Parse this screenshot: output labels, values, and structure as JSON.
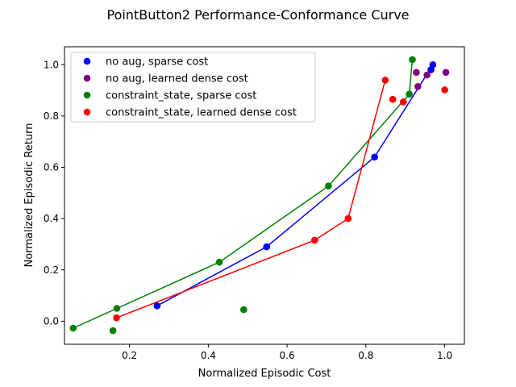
{
  "chart_data": {
    "type": "scatter",
    "title": "PointButton2 Performance-Conformance Curve",
    "xlabel": "Normalized Episodic Cost",
    "ylabel": "Normalized Episodic Return",
    "xlim": [
      0.035,
      1.05
    ],
    "ylim": [
      -0.09,
      1.07
    ],
    "xticks": [
      0.2,
      0.4,
      0.6,
      0.8,
      1.0
    ],
    "yticks": [
      0.0,
      0.2,
      0.4,
      0.6,
      0.8,
      1.0
    ],
    "xtick_labels": [
      "0.2",
      "0.4",
      "0.6",
      "0.8",
      "1.0"
    ],
    "ytick_labels": [
      "0.0",
      "0.2",
      "0.4",
      "0.6",
      "0.8",
      "1.0"
    ],
    "grid": false,
    "legend_placement": "top-left",
    "series": [
      {
        "name": "no aug, sparse cost",
        "color": "#0000ff",
        "points": [
          [
            0.27,
            0.06
          ],
          [
            0.548,
            0.29
          ],
          [
            0.822,
            0.64
          ],
          [
            0.965,
            0.98
          ],
          [
            0.97,
            1.0
          ]
        ],
        "frontier": [
          [
            0.27,
            0.06
          ],
          [
            0.548,
            0.29
          ],
          [
            0.822,
            0.64
          ],
          [
            0.97,
            1.0
          ]
        ]
      },
      {
        "name": "no aug, learned dense cost",
        "color": "#800080",
        "points": [
          [
            0.928,
            0.97
          ],
          [
            0.932,
            0.915
          ],
          [
            0.955,
            0.96
          ],
          [
            1.003,
            0.97
          ]
        ],
        "frontier": []
      },
      {
        "name": "constraint_state, sparse cost",
        "color": "#008000",
        "points": [
          [
            0.057,
            -0.027
          ],
          [
            0.158,
            -0.037
          ],
          [
            0.168,
            0.05
          ],
          [
            0.428,
            0.23
          ],
          [
            0.49,
            0.045
          ],
          [
            0.705,
            0.527
          ],
          [
            0.91,
            0.885
          ],
          [
            0.918,
            1.02
          ]
        ],
        "frontier": [
          [
            0.057,
            -0.027
          ],
          [
            0.168,
            0.05
          ],
          [
            0.428,
            0.23
          ],
          [
            0.705,
            0.527
          ],
          [
            0.91,
            0.885
          ],
          [
            0.918,
            1.02
          ]
        ]
      },
      {
        "name": "constraint_state, learned dense cost",
        "color": "#ff0000",
        "points": [
          [
            0.167,
            0.013
          ],
          [
            0.67,
            0.316
          ],
          [
            0.755,
            0.4
          ],
          [
            0.849,
            0.94
          ],
          [
            0.868,
            0.865
          ],
          [
            0.895,
            0.855
          ],
          [
            1.0,
            0.902
          ]
        ],
        "frontier": [
          [
            0.167,
            0.013
          ],
          [
            0.67,
            0.316
          ],
          [
            0.755,
            0.4
          ],
          [
            0.849,
            0.94
          ]
        ]
      }
    ]
  }
}
